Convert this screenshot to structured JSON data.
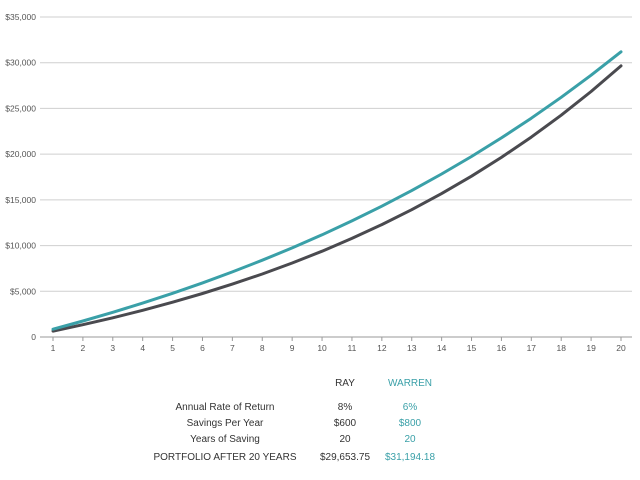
{
  "chart_data": {
    "type": "line",
    "x": [
      1,
      2,
      3,
      4,
      5,
      6,
      7,
      8,
      9,
      10,
      11,
      12,
      13,
      14,
      15,
      16,
      17,
      18,
      19,
      20
    ],
    "x_tick_labels": [
      "1",
      "2",
      "3",
      "4",
      "5",
      "6",
      "7",
      "8",
      "9",
      "10",
      "11",
      "12",
      "13",
      "14",
      "15",
      "16",
      "17",
      "18",
      "19",
      "20"
    ],
    "y_tick_labels": [
      "0",
      "$5,000",
      "$10,000",
      "$15,000",
      "$20,000",
      "$25,000",
      "$30,000",
      "$35,000"
    ],
    "ylim": [
      0,
      35000
    ],
    "grid": true,
    "series": [
      {
        "name": "RAY",
        "color": "#4a4a4f",
        "values": [
          648,
          1348,
          2104,
          2920,
          3802,
          4754,
          5782,
          6893,
          8091,
          9386,
          10785,
          12296,
          13927,
          15689,
          17592,
          19647,
          21867,
          24264,
          26853,
          29653.75
        ]
      },
      {
        "name": "WARREN",
        "color": "#3aa0a8",
        "values": [
          848,
          1747,
          2700,
          3710,
          4781,
          5916,
          7119,
          8395,
          9746,
          11179,
          12698,
          14308,
          16015,
          17824,
          19741,
          21774,
          23928,
          26212,
          28636,
          31194.18
        ]
      }
    ]
  },
  "summary": {
    "header": {
      "ray": "RAY",
      "warren": "WARREN"
    },
    "rows": [
      {
        "label": "Annual Rate of Return",
        "ray": "8%",
        "warren": "6%"
      },
      {
        "label": "Savings Per Year",
        "ray": "$600",
        "warren": "$800"
      },
      {
        "label": "Years of Saving",
        "ray": "20",
        "warren": "20"
      },
      {
        "label": "PORTFOLIO AFTER 20 YEARS",
        "ray": "$29,653.75",
        "warren": "$31,194.18"
      }
    ]
  }
}
